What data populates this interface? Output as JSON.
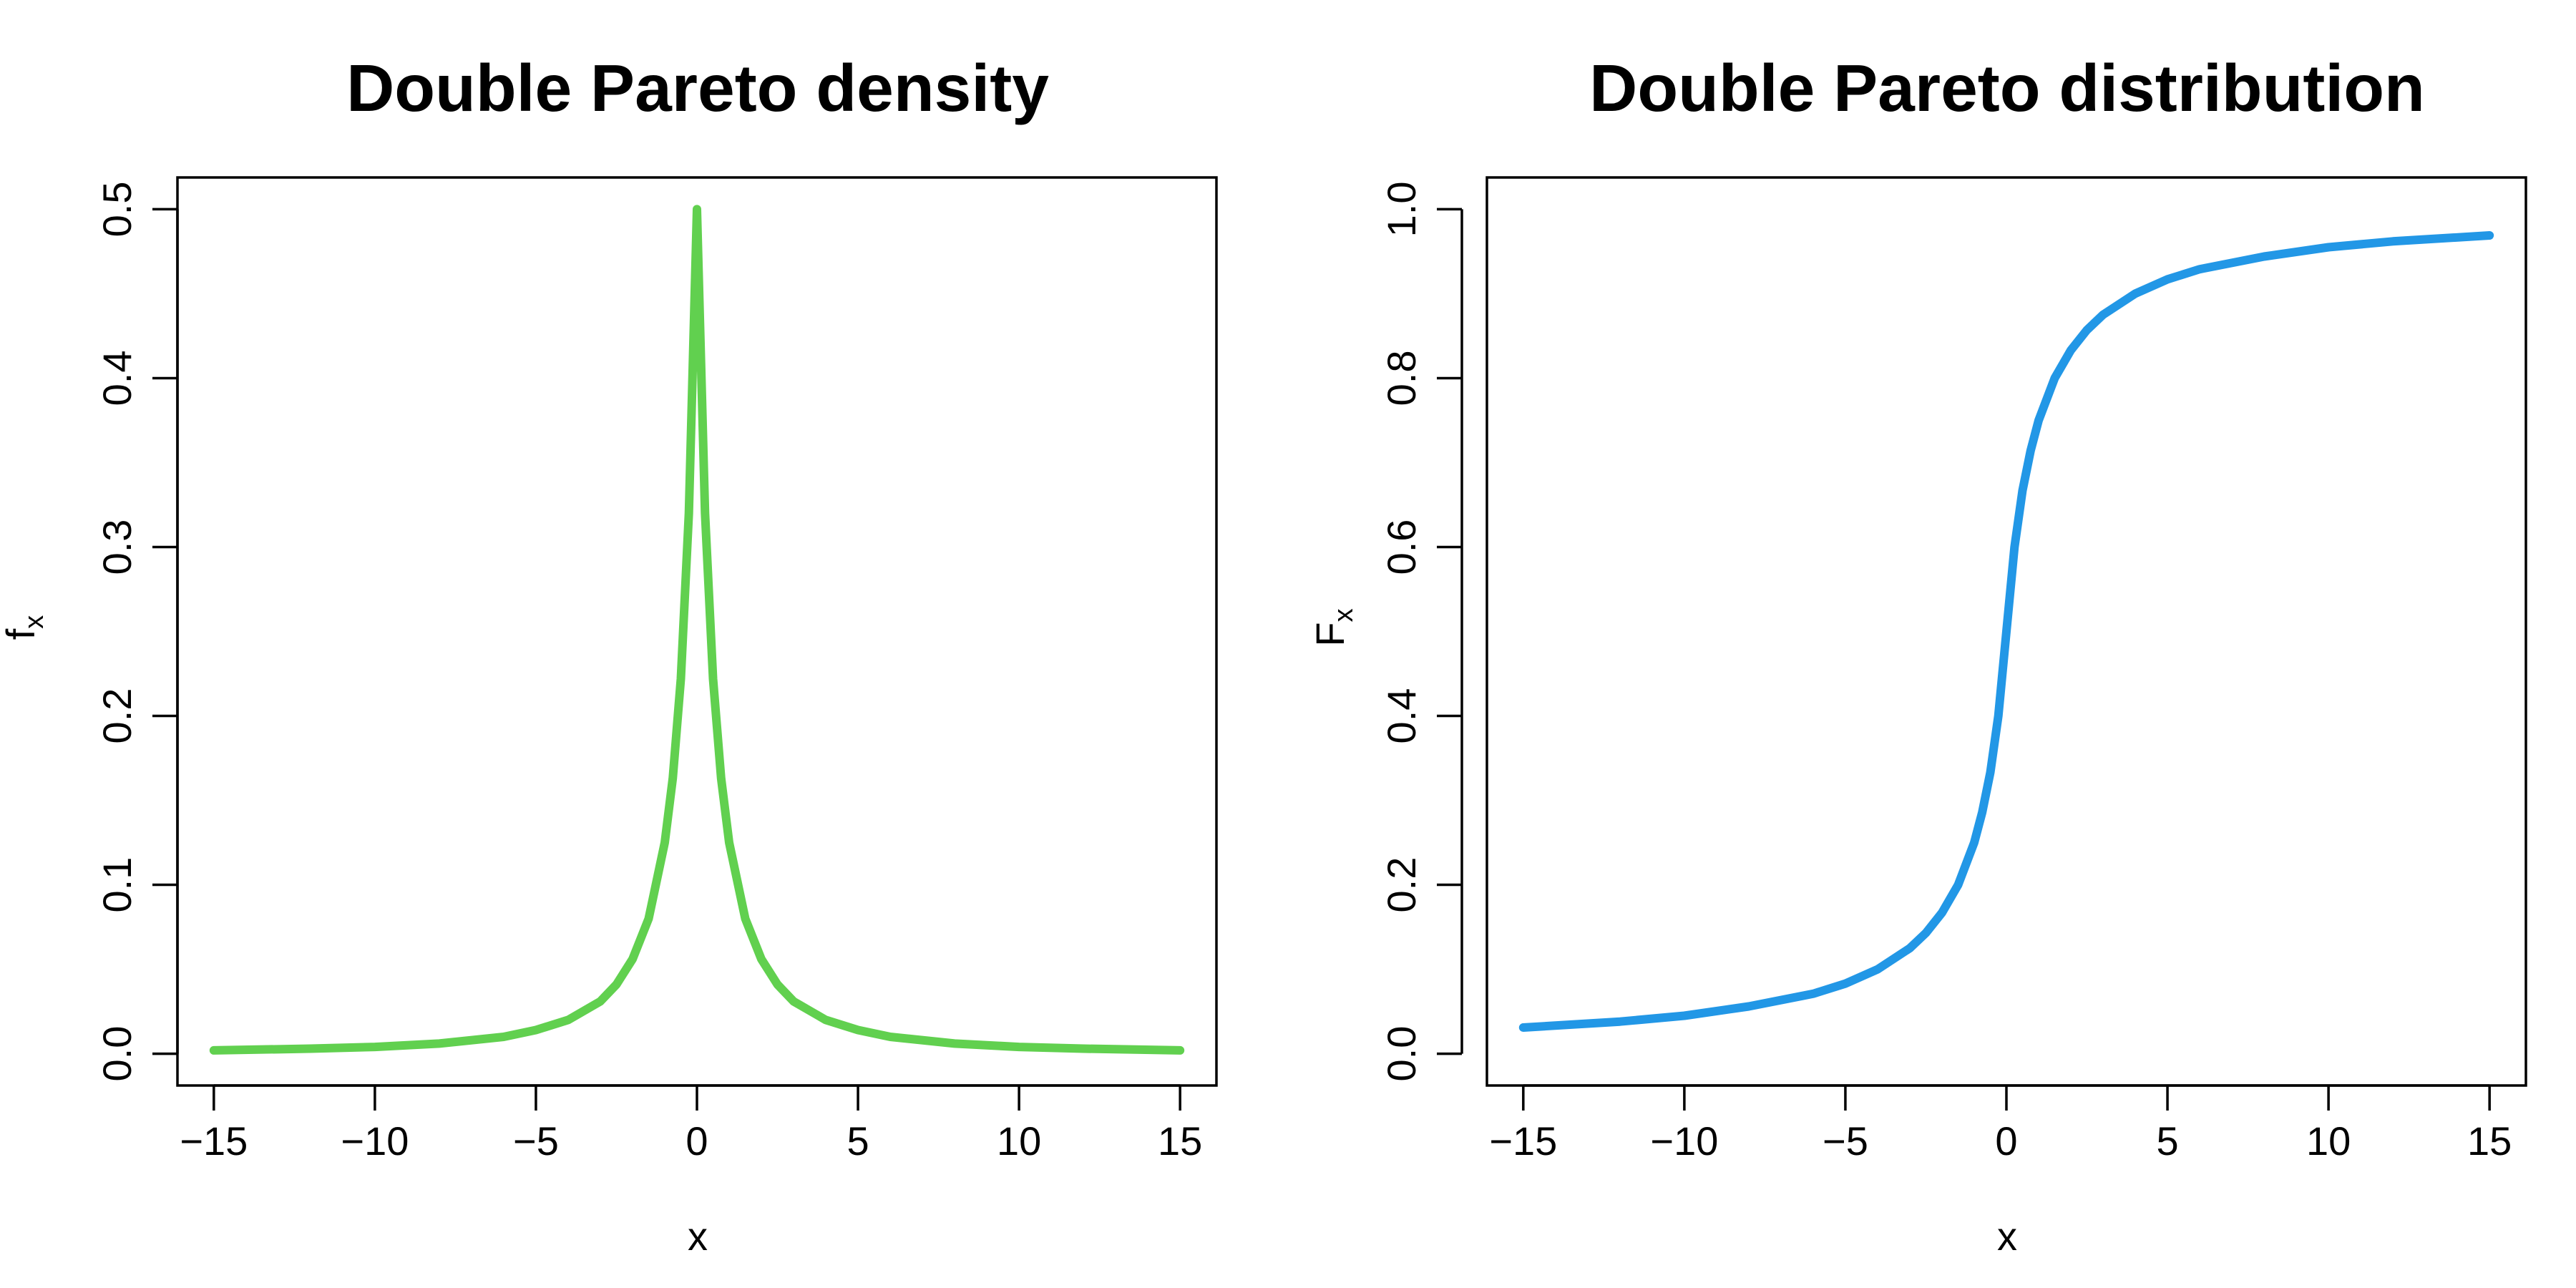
{
  "colors": {
    "density": "#61d04f",
    "distribution": "#2297e6"
  },
  "chart_data": [
    {
      "type": "line",
      "title": "Double Pareto density",
      "xlabel": "x",
      "ylabel": {
        "main": "f",
        "sub": "x"
      },
      "xlim": [
        -15,
        15
      ],
      "ylim": [
        0,
        0.5
      ],
      "xticks": [
        -15,
        -10,
        -5,
        0,
        5,
        10,
        15
      ],
      "xtick_labels": [
        "−15",
        "−10",
        "−5",
        "0",
        "5",
        "10",
        "15"
      ],
      "yticks": [
        0.0,
        0.1,
        0.2,
        0.3,
        0.4,
        0.5
      ],
      "ytick_labels": [
        "0.0",
        "0.1",
        "0.2",
        "0.3",
        "0.4",
        "0.5"
      ],
      "grid": false,
      "series": [
        {
          "x": [
            -15,
            -12,
            -10,
            -8,
            -6,
            -5,
            -4,
            -3,
            -2.5,
            -2,
            -1.5,
            -1,
            -0.75,
            -0.5,
            -0.25,
            0,
            0.25,
            0.5,
            0.75,
            1,
            1.5,
            2,
            2.5,
            3,
            4,
            5,
            6,
            8,
            10,
            12,
            15
          ],
          "y": [
            0.002,
            0.003,
            0.004,
            0.006,
            0.01,
            0.014,
            0.02,
            0.031,
            0.041,
            0.056,
            0.08,
            0.125,
            0.163,
            0.222,
            0.32,
            0.5,
            0.32,
            0.222,
            0.163,
            0.125,
            0.08,
            0.056,
            0.041,
            0.031,
            0.02,
            0.014,
            0.01,
            0.006,
            0.004,
            0.003,
            0.002
          ],
          "color": "#61d04f"
        }
      ]
    },
    {
      "type": "line",
      "title": "Double Pareto distribution",
      "xlabel": "x",
      "ylabel": {
        "main": "F",
        "sub": "x"
      },
      "xlim": [
        -15,
        15
      ],
      "ylim": [
        0,
        1
      ],
      "xticks": [
        -15,
        -10,
        -5,
        0,
        5,
        10,
        15
      ],
      "xtick_labels": [
        "−15",
        "−10",
        "−5",
        "0",
        "5",
        "10",
        "15"
      ],
      "yticks": [
        0.0,
        0.2,
        0.4,
        0.6,
        0.8,
        1.0
      ],
      "ytick_labels": [
        "0.0",
        "0.2",
        "0.4",
        "0.6",
        "0.8",
        "1.0"
      ],
      "grid": false,
      "series": [
        {
          "x": [
            -15,
            -12,
            -10,
            -8,
            -6,
            -5,
            -4,
            -3,
            -2.5,
            -2,
            -1.5,
            -1,
            -0.75,
            -0.5,
            -0.25,
            0,
            0.25,
            0.5,
            0.75,
            1,
            1.5,
            2,
            2.5,
            3,
            4,
            5,
            6,
            8,
            10,
            12,
            15
          ],
          "y": [
            0.031,
            0.038,
            0.045,
            0.056,
            0.071,
            0.083,
            0.1,
            0.125,
            0.143,
            0.167,
            0.2,
            0.25,
            0.286,
            0.333,
            0.4,
            0.5,
            0.6,
            0.667,
            0.714,
            0.75,
            0.8,
            0.833,
            0.857,
            0.875,
            0.9,
            0.917,
            0.929,
            0.944,
            0.955,
            0.962,
            0.969
          ],
          "color": "#2297e6"
        }
      ]
    }
  ]
}
